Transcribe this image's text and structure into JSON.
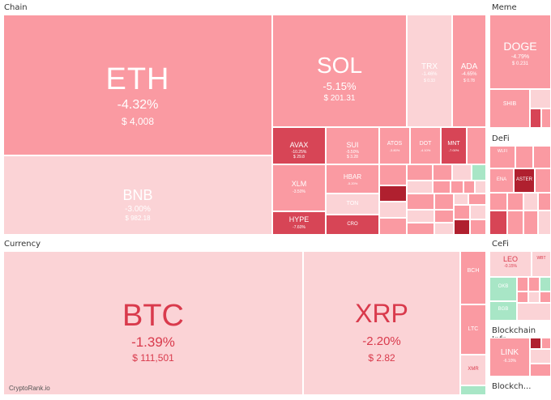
{
  "sections": {
    "chain": "Chain",
    "meme": "Meme",
    "defi": "DeFi",
    "currency": "Currency",
    "cefi": "CeFi",
    "infra": "Blockchain Infr...",
    "blockch": "Blockch..."
  },
  "tiles": {
    "eth": {
      "symbol": "ETH",
      "change": "-4.32%",
      "price": "$ 4,008"
    },
    "bnb": {
      "symbol": "BNB",
      "change": "-3.00%",
      "price": "$ 982.18"
    },
    "sol": {
      "symbol": "SOL",
      "change": "-5.15%",
      "price": "$ 201.31"
    },
    "trx": {
      "symbol": "TRX",
      "change": "-1.46%",
      "price": "$ 0.33"
    },
    "ada": {
      "symbol": "ADA",
      "change": "-4.65%",
      "price": "$ 0.78"
    },
    "avax": {
      "symbol": "AVAX",
      "change": "-10.25%",
      "price": "$ 29.8"
    },
    "sui": {
      "symbol": "SUI",
      "change": "-5.50%",
      "price": "$ 3.28"
    },
    "atos": {
      "symbol": "ATOS",
      "change": "-3.80%",
      "price": ""
    },
    "dot": {
      "symbol": "DOT",
      "change": "-4.10%",
      "price": ""
    },
    "mnt": {
      "symbol": "MNT",
      "change": "-7.00%",
      "price": ""
    },
    "xlm": {
      "symbol": "XLM",
      "change": "-3.50%",
      "price": ""
    },
    "hbar": {
      "symbol": "HBAR",
      "change": "-5.20%",
      "price": ""
    },
    "ton": {
      "symbol": "TON",
      "change": "",
      "price": ""
    },
    "hype": {
      "symbol": "HYPE",
      "change": "-7.60%",
      "price": ""
    },
    "cro": {
      "symbol": "CRO",
      "change": "",
      "price": ""
    },
    "doge": {
      "symbol": "DOGE",
      "change": "-4.79%",
      "price": "$ 0.231"
    },
    "shib": {
      "symbol": "SHIB",
      "change": "",
      "price": ""
    },
    "aster": {
      "symbol": "ASTER",
      "change": "",
      "price": ""
    },
    "wlfi": {
      "symbol": "WLFI",
      "change": "",
      "price": ""
    },
    "ena": {
      "symbol": "ENA",
      "change": "",
      "price": ""
    },
    "btc": {
      "symbol": "BTC",
      "change": "-1.39%",
      "price": "$ 111,501"
    },
    "xrp": {
      "symbol": "XRP",
      "change": "-2.20%",
      "price": "$ 2.82"
    },
    "bch": {
      "symbol": "BCH",
      "change": "",
      "price": ""
    },
    "ltc": {
      "symbol": "LTC",
      "change": "",
      "price": ""
    },
    "xmr": {
      "symbol": "XMR",
      "change": "",
      "price": ""
    },
    "leo": {
      "symbol": "LEO",
      "change": "-0.15%",
      "price": ""
    },
    "wbt": {
      "symbol": "WBT",
      "change": "",
      "price": ""
    },
    "okb": {
      "symbol": "OKB",
      "change": "",
      "price": ""
    },
    "bgb": {
      "symbol": "BGB",
      "change": "",
      "price": ""
    },
    "link": {
      "symbol": "LINK",
      "change": "-6.10%",
      "price": ""
    }
  },
  "watermark": "CryptoRank.io",
  "colors": {
    "light": "#fbd3d6",
    "medium": "#fa9aa2",
    "strong": "#ec6f7b",
    "dark": "#d74556",
    "darker": "#b0202f",
    "green": "#a8e6c6",
    "btc_text": "#d93a4c"
  }
}
